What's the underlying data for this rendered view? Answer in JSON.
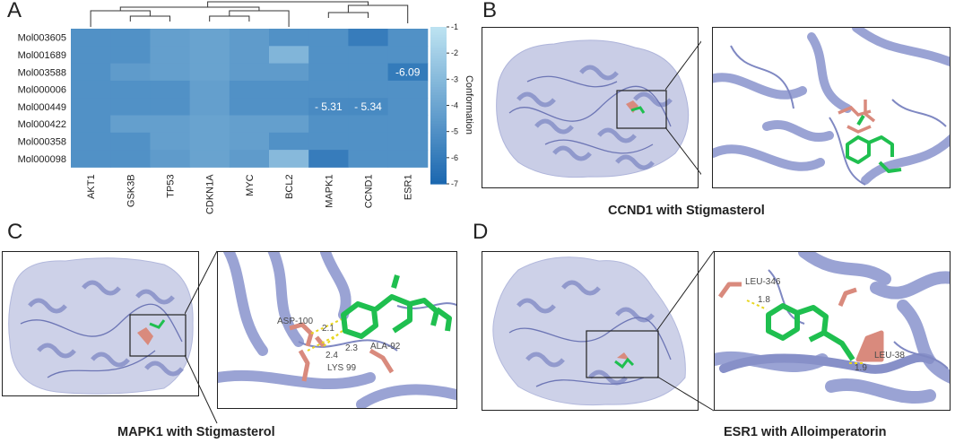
{
  "panels": {
    "a": "A",
    "b": "B",
    "c": "C",
    "d": "D"
  },
  "captions": {
    "b": "CCND1 with Stigmasterol",
    "c": "MAPK1 with Stigmasterol",
    "d": "ESR1 with Alloimperatorin"
  },
  "residue_labels": {
    "c": [
      "ASP-100",
      "ALA-92",
      "LYS 99"
    ],
    "d": [
      "LEU-346",
      "LEU-38"
    ]
  },
  "distance_labels": {
    "c": [
      "2.1",
      "2.3",
      "2.4"
    ],
    "d": [
      "1.8",
      "1.9"
    ]
  },
  "colors": {
    "protein": "#9aa3d4",
    "ligand": "#1fbf4f",
    "residue": "#d98a7d",
    "hbond": "#e8d620"
  },
  "chart_data": {
    "type": "heatmap",
    "rows": [
      "Mol003605",
      "Mol001689",
      "Mol003588",
      "Mol000006",
      "Mol000449",
      "Mol000422",
      "Mol000358",
      "Mol000098"
    ],
    "columns": [
      "AKT1",
      "GSK3B",
      "TP53",
      "CDKN1A",
      "MYC",
      "BCL2",
      "MAPK1",
      "CCND1",
      "ESR1"
    ],
    "values": [
      [
        -5.0,
        -5.0,
        -4.3,
        -4.1,
        -4.5,
        -5.0,
        -5.0,
        -6.0,
        -5.0
      ],
      [
        -5.0,
        -5.0,
        -4.3,
        -4.1,
        -4.5,
        -3.2,
        -5.0,
        -5.0,
        -5.0
      ],
      [
        -5.0,
        -4.5,
        -4.3,
        -4.1,
        -4.5,
        -4.5,
        -5.0,
        -5.0,
        -6.09
      ],
      [
        -5.0,
        -5.0,
        -5.0,
        -4.3,
        -5.0,
        -5.0,
        -5.0,
        -5.0,
        -5.0
      ],
      [
        -5.0,
        -5.0,
        -5.0,
        -4.3,
        -5.0,
        -5.0,
        -5.31,
        -5.34,
        -5.0
      ],
      [
        -5.0,
        -4.3,
        -4.3,
        -4.1,
        -4.3,
        -4.3,
        -5.0,
        -5.0,
        -5.0
      ],
      [
        -5.0,
        -5.0,
        -4.3,
        -4.1,
        -4.3,
        -5.0,
        -5.0,
        -5.0,
        -5.0
      ],
      [
        -5.0,
        -5.0,
        -4.5,
        -4.1,
        -4.5,
        -3.0,
        -6.0,
        -5.0,
        -5.0
      ]
    ],
    "cell_labels": [
      {
        "row": "Mol003588",
        "column": "ESR1",
        "text": "-6.09"
      },
      {
        "row": "Mol000449",
        "column": "MAPK1",
        "text": "- 5.31"
      },
      {
        "row": "Mol000449",
        "column": "CCND1",
        "text": "- 5.34"
      }
    ],
    "colorbar": {
      "title": "Conformation",
      "ticks": [
        "-1",
        "-2",
        "-3",
        "-4",
        "-5",
        "-6",
        "-7"
      ],
      "range": [
        -7,
        -1
      ]
    },
    "column_dendrogram": true
  }
}
